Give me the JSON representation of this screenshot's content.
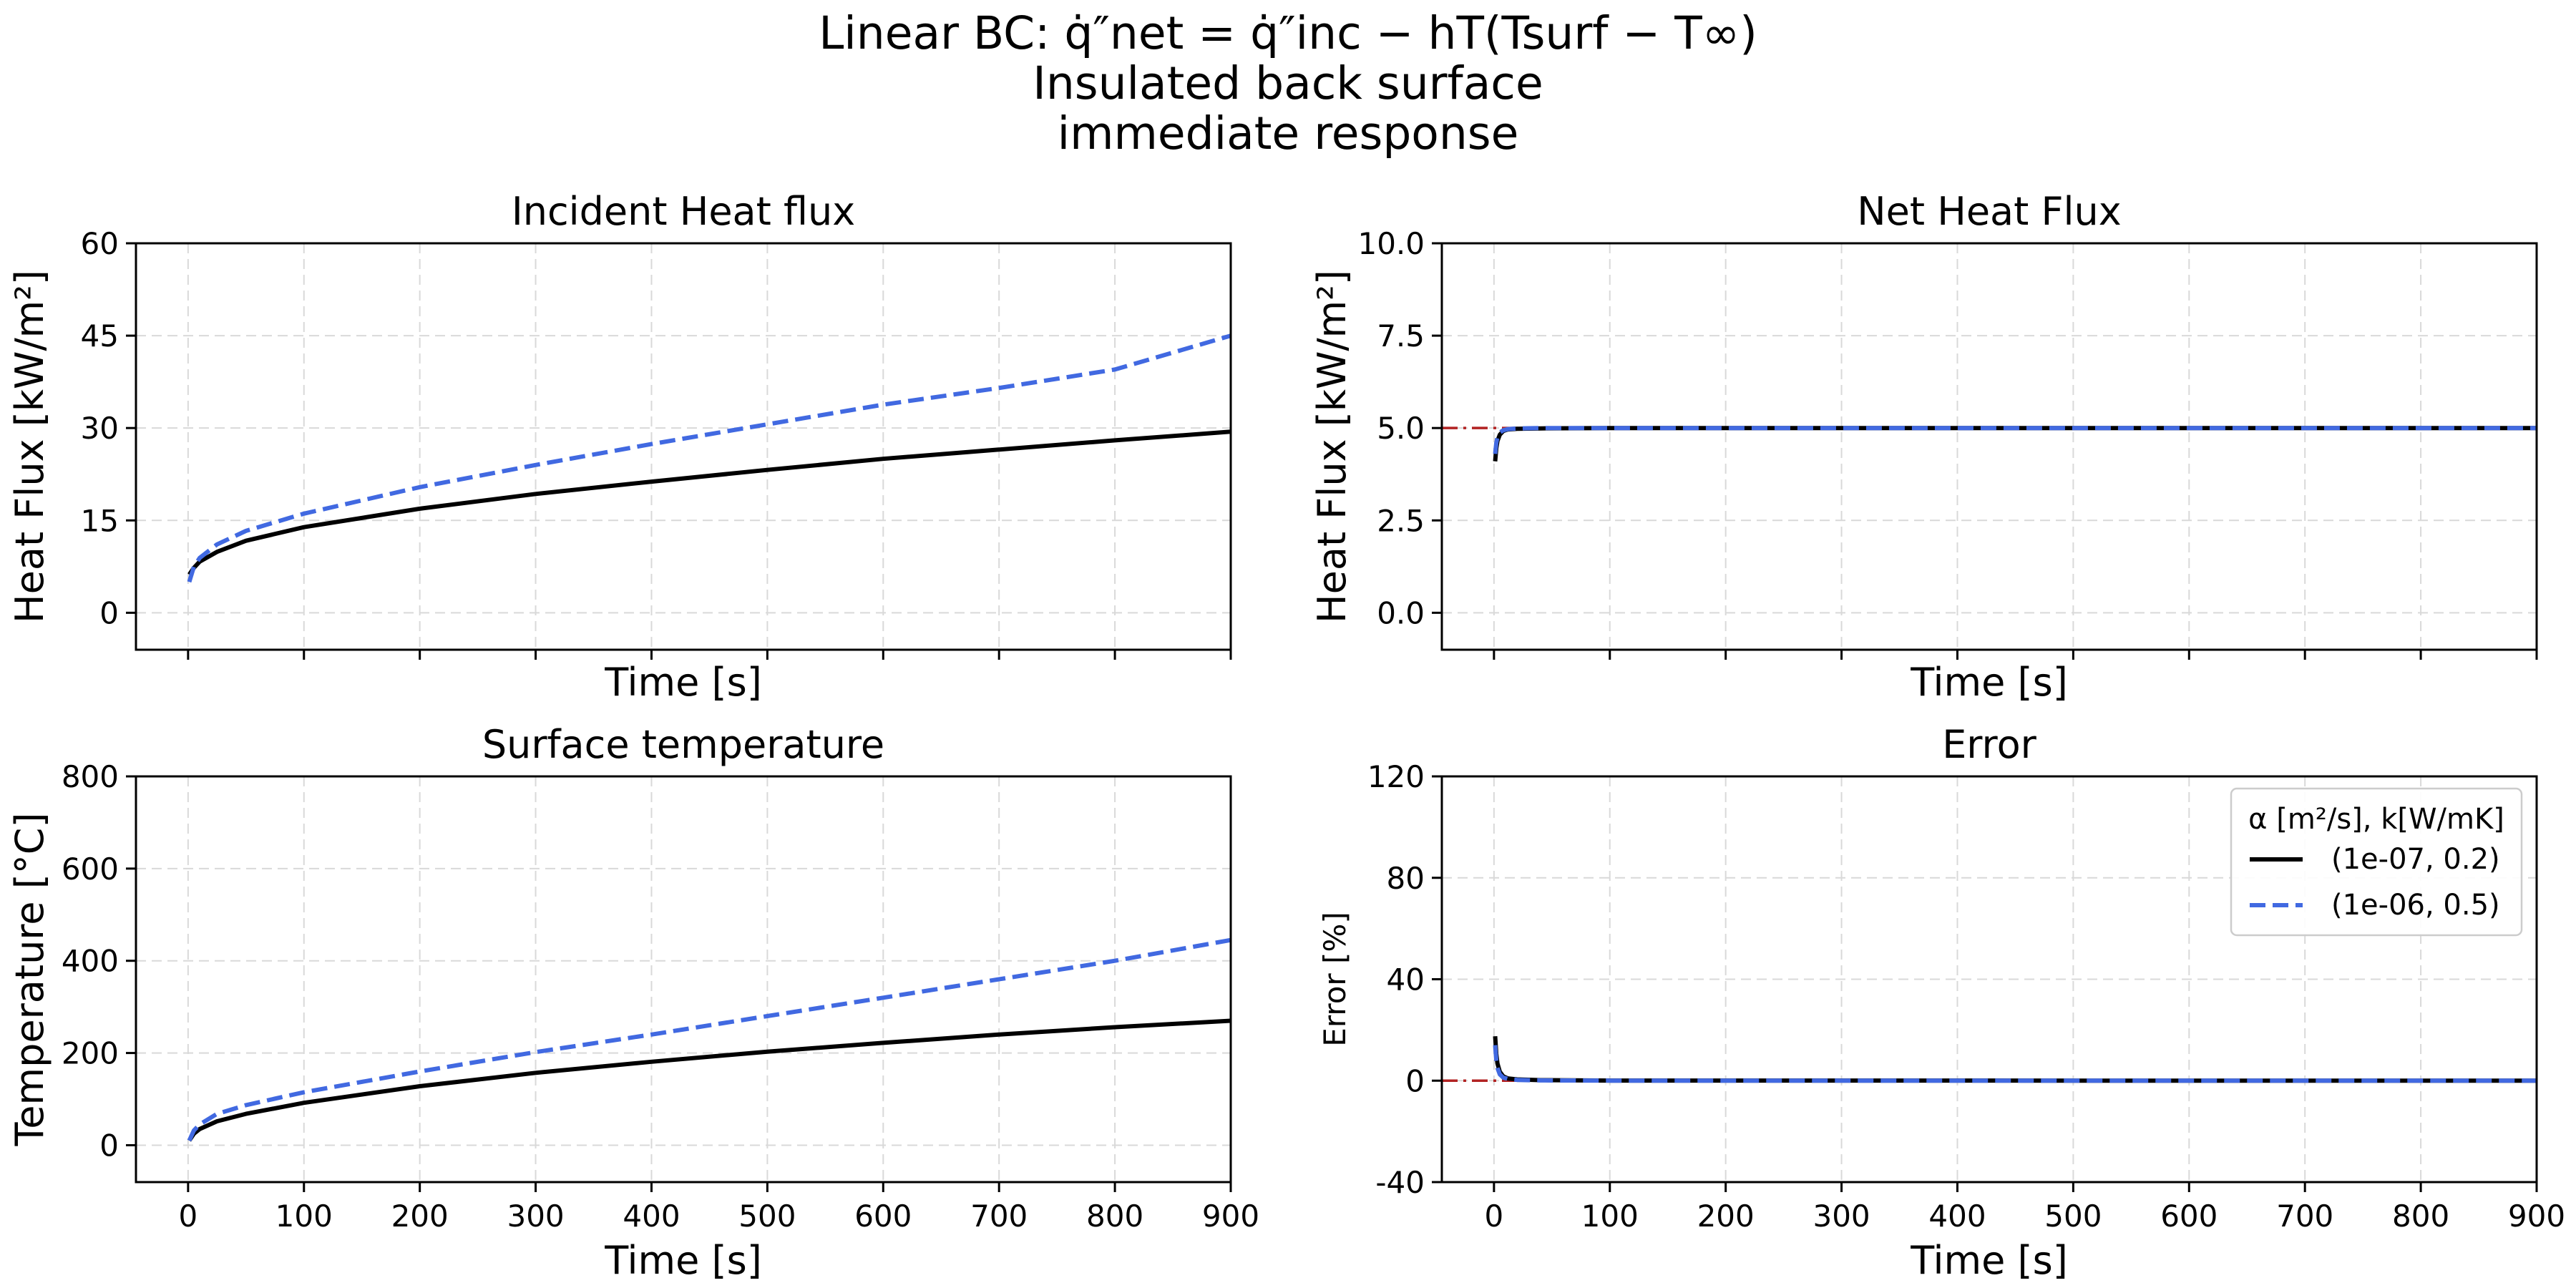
{
  "figure": {
    "title_lines": [
      "Linear BC: q̇″net = q̇″inc − hT(Tsurf − T∞)",
      "Insulated back surface",
      "immediate response"
    ]
  },
  "colors": {
    "series_1": "#000000",
    "series_2": "#4169e1",
    "reference": "#b22222",
    "grid": "#d9d9d9"
  },
  "legend": {
    "title": "α [m²/s], k[W/mK]",
    "placement": "upper-right of Error panel",
    "entries": [
      "(1e-07, 0.2)",
      "(1e-06, 0.5)"
    ]
  },
  "chart_data": [
    {
      "id": "incident",
      "type": "line",
      "title": "Incident Heat flux",
      "xlabel": "Time [s]",
      "ylabel": "Heat Flux [kW/m²]",
      "xlim": [
        -45,
        900
      ],
      "ylim": [
        -6,
        60
      ],
      "xticks": [
        0,
        100,
        200,
        300,
        400,
        500,
        600,
        700,
        800,
        900
      ],
      "yticks": [
        0,
        15,
        30,
        45,
        60
      ],
      "show_xticklabels": false,
      "grid": true,
      "series": [
        {
          "name": "(1e-07, 0.2)",
          "style": "solid",
          "x": [
            1,
            5,
            10,
            25,
            50,
            100,
            200,
            300,
            400,
            500,
            600,
            700,
            800,
            900
          ],
          "y": [
            6.2,
            7.3,
            8.3,
            9.9,
            11.7,
            13.9,
            16.9,
            19.3,
            21.3,
            23.2,
            25.0,
            26.5,
            28.0,
            29.4
          ]
        },
        {
          "name": "(1e-06, 0.5)",
          "style": "dashed",
          "x": [
            1,
            5,
            10,
            25,
            50,
            100,
            200,
            300,
            400,
            500,
            600,
            700,
            800,
            900
          ],
          "y": [
            5.0,
            7.5,
            8.9,
            11.1,
            13.3,
            16.1,
            20.4,
            24.0,
            27.4,
            30.6,
            33.8,
            36.5,
            39.5,
            45.0
          ]
        }
      ]
    },
    {
      "id": "net",
      "type": "line",
      "title": "Net Heat Flux",
      "xlabel": "Time [s]",
      "ylabel": "Heat Flux [kW/m²]",
      "xlim": [
        -45,
        900
      ],
      "ylim": [
        -1,
        10
      ],
      "xticks": [
        0,
        100,
        200,
        300,
        400,
        500,
        600,
        700,
        800,
        900
      ],
      "yticks": [
        0.0,
        2.5,
        5.0,
        7.5,
        10.0
      ],
      "ytick_labels": [
        "0.0",
        "2.5",
        "5.0",
        "7.5",
        "10.0"
      ],
      "show_xticklabels": false,
      "grid": true,
      "reference_line": {
        "y": 5.0,
        "style": "dash-dot"
      },
      "series": [
        {
          "name": "(1e-07, 0.2)",
          "style": "solid",
          "x": [
            1,
            2,
            3,
            5,
            8,
            12,
            20,
            40,
            100,
            900
          ],
          "y": [
            4.1,
            4.45,
            4.65,
            4.82,
            4.92,
            4.96,
            4.98,
            4.99,
            5.0,
            5.0
          ]
        },
        {
          "name": "(1e-06, 0.5)",
          "style": "dashed",
          "x": [
            1,
            2,
            3,
            5,
            8,
            12,
            20,
            40,
            100,
            900
          ],
          "y": [
            4.3,
            4.6,
            4.75,
            4.88,
            4.94,
            4.97,
            4.99,
            5.0,
            5.0,
            5.0
          ]
        }
      ]
    },
    {
      "id": "surface_temp",
      "type": "line",
      "title": "Surface temperature",
      "xlabel": "Time [s]",
      "ylabel": "Temperature [°C]",
      "xlim": [
        -45,
        900
      ],
      "ylim": [
        -80,
        800
      ],
      "xticks": [
        0,
        100,
        200,
        300,
        400,
        500,
        600,
        700,
        800,
        900
      ],
      "yticks": [
        0,
        200,
        400,
        600,
        800
      ],
      "show_xticklabels": true,
      "grid": true,
      "series": [
        {
          "name": "(1e-07, 0.2)",
          "style": "solid",
          "x": [
            1,
            5,
            10,
            25,
            50,
            100,
            200,
            300,
            400,
            500,
            600,
            700,
            800,
            900
          ],
          "y": [
            10,
            25,
            35,
            52,
            68,
            92,
            128,
            157,
            181,
            203,
            222,
            240,
            256,
            270
          ]
        },
        {
          "name": "(1e-06, 0.5)",
          "style": "dashed",
          "x": [
            1,
            5,
            10,
            25,
            50,
            100,
            200,
            300,
            400,
            500,
            600,
            700,
            800,
            900
          ],
          "y": [
            10,
            32,
            45,
            68,
            87,
            115,
            160,
            202,
            240,
            280,
            320,
            360,
            400,
            445
          ]
        }
      ]
    },
    {
      "id": "error",
      "type": "line",
      "title": "Error",
      "xlabel": "Time [s]",
      "ylabel": "Error [%]",
      "xlim": [
        -45,
        900
      ],
      "ylim": [
        -40,
        120
      ],
      "xticks": [
        0,
        100,
        200,
        300,
        400,
        500,
        600,
        700,
        800,
        900
      ],
      "yticks": [
        -40,
        0,
        40,
        80,
        120
      ],
      "show_xticklabels": true,
      "grid": true,
      "reference_line": {
        "y": 0,
        "style": "dash-dot"
      },
      "series": [
        {
          "name": "(1e-07, 0.2)",
          "style": "solid",
          "x": [
            1,
            2,
            3,
            5,
            8,
            12,
            20,
            40,
            100,
            900
          ],
          "y": [
            17.5,
            10.5,
            6.8,
            3.5,
            1.7,
            0.9,
            0.5,
            0.2,
            0.05,
            0.0
          ]
        },
        {
          "name": "(1e-06, 0.5)",
          "style": "dashed",
          "x": [
            1,
            2,
            3,
            5,
            8,
            12,
            20,
            40,
            100,
            900
          ],
          "y": [
            14.0,
            8.0,
            5.0,
            2.5,
            1.2,
            0.7,
            0.3,
            0.1,
            0.02,
            0.0
          ]
        }
      ]
    }
  ]
}
